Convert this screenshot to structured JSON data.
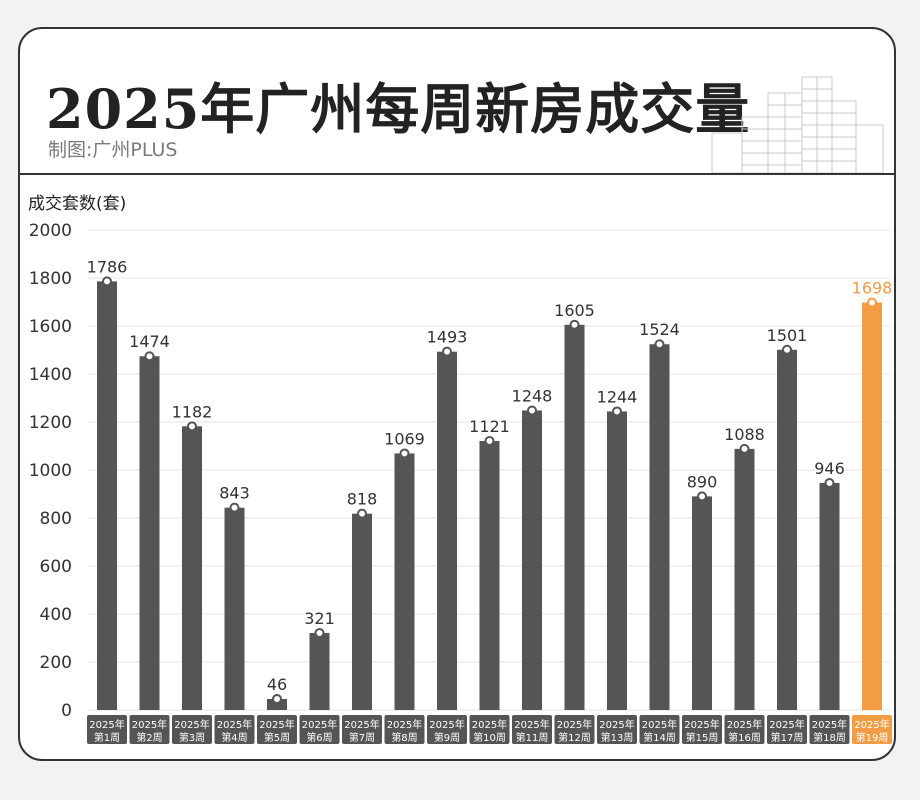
{
  "header": {
    "title": "2025年广州每周新房成交量",
    "subtitle": "制图:广州PLUS"
  },
  "colors": {
    "bar": "#555555",
    "highlight": "#f39c44",
    "grid": "#e3e3e3",
    "text": "#333333"
  },
  "icons": [
    "building-skyline-icon"
  ],
  "chart_data": {
    "type": "bar",
    "title": "2025年广州每周新房成交量",
    "ylabel": "成交套数(套)",
    "xlabel": "",
    "ylim": [
      0,
      2000
    ],
    "yticks": [
      0,
      200,
      400,
      600,
      800,
      1000,
      1200,
      1400,
      1600,
      1800,
      2000
    ],
    "grid": true,
    "categories": [
      [
        "2025年",
        "第1周"
      ],
      [
        "2025年",
        "第2周"
      ],
      [
        "2025年",
        "第3周"
      ],
      [
        "2025年",
        "第4周"
      ],
      [
        "2025年",
        "第5周"
      ],
      [
        "2025年",
        "第6周"
      ],
      [
        "2025年",
        "第7周"
      ],
      [
        "2025年",
        "第8周"
      ],
      [
        "2025年",
        "第9周"
      ],
      [
        "2025年",
        "第10周"
      ],
      [
        "2025年",
        "第11周"
      ],
      [
        "2025年",
        "第12周"
      ],
      [
        "2025年",
        "第13周"
      ],
      [
        "2025年",
        "第14周"
      ],
      [
        "2025年",
        "第15周"
      ],
      [
        "2025年",
        "第16周"
      ],
      [
        "2025年",
        "第17周"
      ],
      [
        "2025年",
        "第18周"
      ],
      [
        "2025年",
        "第19周"
      ]
    ],
    "values": [
      1786,
      1474,
      1182,
      843,
      46,
      321,
      818,
      1069,
      1493,
      1121,
      1248,
      1605,
      1244,
      1524,
      890,
      1088,
      1501,
      946,
      1698
    ],
    "highlight_index": 18
  }
}
